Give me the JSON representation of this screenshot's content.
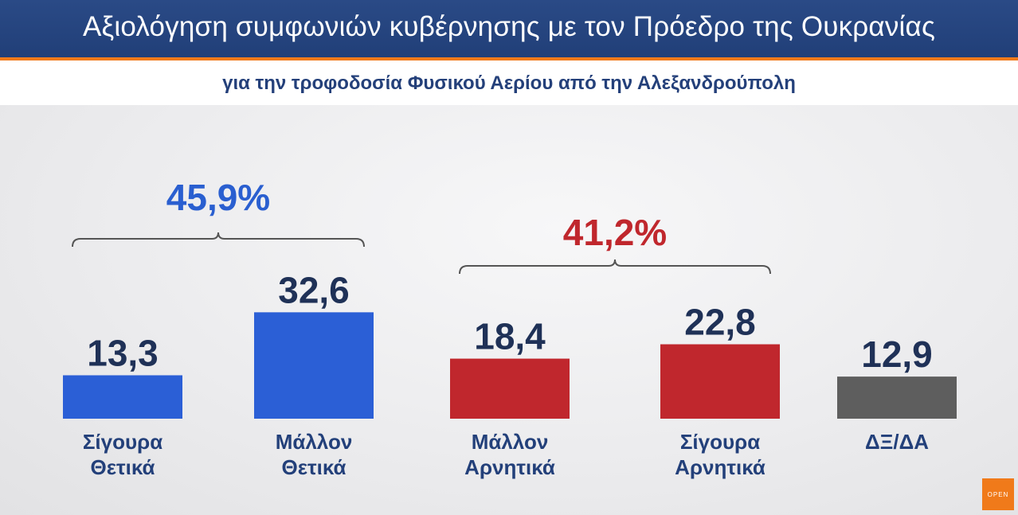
{
  "header": {
    "title": "Αξιολόγηση συμφωνιών κυβέρνησης με τον Πρόεδρο της Ουκρανίας",
    "subtitle": "για την τροφοδοσία Φυσικού Αερίου από την Αλεξανδρούπολη"
  },
  "logo": {
    "text": "OPEN",
    "color": "#f07a1a"
  },
  "chart_data": {
    "type": "bar",
    "title": "Αξιολόγηση συμφωνιών κυβέρνησης με τον Προέδρο της Ουκρανίας",
    "subtitle": "για την τροφοδοσία Φυσικού Αερίου από την Αλεξανδρούπολη",
    "categories": [
      [
        "Σίγουρα",
        "Θετικά"
      ],
      [
        "Μάλλον",
        "Θετικά"
      ],
      [
        "Μάλλον",
        "Αρνητικά"
      ],
      [
        "Σίγουρα",
        "Αρνητικά"
      ],
      [
        "ΔΞ/ΔΑ"
      ]
    ],
    "values": [
      13.3,
      32.6,
      18.4,
      22.8,
      12.9
    ],
    "value_labels": [
      "13,3",
      "32,6",
      "18,4",
      "22,8",
      "12,9"
    ],
    "bar_colors": [
      "#2b5fd6",
      "#2b5fd6",
      "#c0272d",
      "#c0272d",
      "#5e5e5e"
    ],
    "groups": [
      {
        "label": "45,9%",
        "value": 45.9,
        "from": 0,
        "to": 1,
        "color": "#2a5fd0"
      },
      {
        "label": "41,2%",
        "value": 41.2,
        "from": 2,
        "to": 3,
        "color": "#c0272d"
      }
    ]
  }
}
